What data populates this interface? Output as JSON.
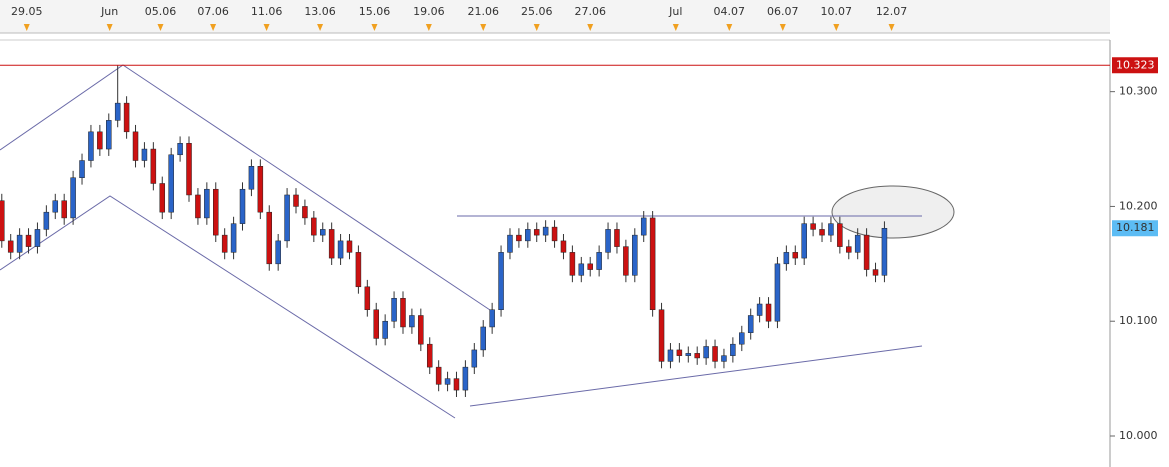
{
  "chart_data": {
    "type": "candlestick",
    "series": [
      {
        "up_color": "#2a64c8",
        "down_color": "#cc1111",
        "open": [
          10.205,
          10.17,
          10.16,
          10.175,
          10.165,
          10.18,
          10.195,
          10.205,
          10.19,
          10.225,
          10.24,
          10.265,
          10.25,
          10.275,
          10.29,
          10.265,
          10.24,
          10.25,
          10.22,
          10.195,
          10.245,
          10.255,
          10.21,
          10.19,
          10.215,
          10.175,
          10.16,
          10.185,
          10.215,
          10.235,
          10.195,
          10.15,
          10.17,
          10.21,
          10.2,
          10.19,
          10.175,
          10.18,
          10.155,
          10.17,
          10.16,
          10.13,
          10.11,
          10.085,
          10.1,
          10.12,
          10.095,
          10.105,
          10.08,
          10.06,
          10.045,
          10.05,
          10.04,
          10.06,
          10.075,
          10.095,
          10.11,
          10.16,
          10.175,
          10.17,
          10.18,
          10.175,
          10.182,
          10.17,
          10.16,
          10.14,
          10.15,
          10.145,
          10.16,
          10.18,
          10.165,
          10.14,
          10.175,
          10.19,
          10.11,
          10.065,
          10.075,
          10.07,
          10.072,
          10.068,
          10.078,
          10.065,
          10.07,
          10.08,
          10.09,
          10.105,
          10.115,
          10.1,
          10.15,
          10.16,
          10.155,
          10.185,
          10.18,
          10.175,
          10.185,
          10.165,
          10.16,
          10.175,
          10.145,
          10.14
        ],
        "high": [
          10.211,
          10.176,
          10.181,
          10.181,
          10.186,
          10.201,
          10.211,
          10.211,
          10.231,
          10.246,
          10.271,
          10.271,
          10.281,
          10.323,
          10.296,
          10.271,
          10.256,
          10.256,
          10.226,
          10.251,
          10.261,
          10.261,
          10.216,
          10.221,
          10.221,
          10.181,
          10.191,
          10.221,
          10.241,
          10.241,
          10.201,
          10.176,
          10.216,
          10.216,
          10.206,
          10.196,
          10.186,
          10.186,
          10.176,
          10.176,
          10.166,
          10.136,
          10.116,
          10.106,
          10.126,
          10.126,
          10.111,
          10.111,
          10.086,
          10.066,
          10.056,
          10.056,
          10.066,
          10.081,
          10.101,
          10.116,
          10.166,
          10.181,
          10.181,
          10.186,
          10.186,
          10.188,
          10.188,
          10.176,
          10.166,
          10.156,
          10.156,
          10.166,
          10.186,
          10.186,
          10.171,
          10.181,
          10.196,
          10.196,
          10.116,
          10.081,
          10.081,
          10.078,
          10.078,
          10.084,
          10.084,
          10.076,
          10.086,
          10.096,
          10.111,
          10.121,
          10.121,
          10.156,
          10.166,
          10.166,
          10.191,
          10.191,
          10.186,
          10.191,
          10.191,
          10.171,
          10.181,
          10.181,
          10.151,
          10.187
        ],
        "low": [
          10.164,
          10.154,
          10.154,
          10.159,
          10.159,
          10.174,
          10.189,
          10.184,
          10.184,
          10.219,
          10.234,
          10.244,
          10.244,
          10.269,
          10.259,
          10.234,
          10.234,
          10.214,
          10.189,
          10.189,
          10.239,
          10.204,
          10.184,
          10.184,
          10.169,
          10.154,
          10.154,
          10.179,
          10.209,
          10.189,
          10.144,
          10.144,
          10.164,
          10.194,
          10.184,
          10.169,
          10.169,
          10.149,
          10.149,
          10.154,
          10.124,
          10.104,
          10.079,
          10.079,
          10.094,
          10.089,
          10.089,
          10.074,
          10.054,
          10.039,
          10.039,
          10.034,
          10.034,
          10.054,
          10.069,
          10.089,
          10.104,
          10.154,
          10.164,
          10.164,
          10.169,
          10.169,
          10.164,
          10.154,
          10.134,
          10.134,
          10.139,
          10.139,
          10.154,
          10.159,
          10.134,
          10.134,
          10.169,
          10.104,
          10.059,
          10.059,
          10.064,
          10.064,
          10.062,
          10.062,
          10.059,
          10.059,
          10.064,
          10.074,
          10.084,
          10.099,
          10.094,
          10.094,
          10.144,
          10.149,
          10.149,
          10.174,
          10.169,
          10.169,
          10.159,
          10.154,
          10.154,
          10.139,
          10.134,
          10.134
        ],
        "close": [
          10.17,
          10.16,
          10.175,
          10.165,
          10.18,
          10.195,
          10.205,
          10.19,
          10.225,
          10.24,
          10.265,
          10.25,
          10.275,
          10.29,
          10.265,
          10.24,
          10.25,
          10.22,
          10.195,
          10.245,
          10.255,
          10.21,
          10.19,
          10.215,
          10.175,
          10.16,
          10.185,
          10.215,
          10.235,
          10.195,
          10.15,
          10.17,
          10.21,
          10.2,
          10.19,
          10.175,
          10.18,
          10.155,
          10.17,
          10.16,
          10.13,
          10.11,
          10.085,
          10.1,
          10.12,
          10.095,
          10.105,
          10.08,
          10.06,
          10.045,
          10.05,
          10.04,
          10.06,
          10.075,
          10.095,
          10.11,
          10.16,
          10.175,
          10.17,
          10.18,
          10.175,
          10.182,
          10.17,
          10.16,
          10.14,
          10.15,
          10.145,
          10.16,
          10.18,
          10.165,
          10.14,
          10.175,
          10.19,
          10.11,
          10.065,
          10.075,
          10.07,
          10.072,
          10.068,
          10.078,
          10.065,
          10.07,
          10.08,
          10.09,
          10.105,
          10.115,
          10.1,
          10.15,
          10.16,
          10.155,
          10.185,
          10.18,
          10.175,
          10.185,
          10.165,
          10.16,
          10.175,
          10.145,
          10.14,
          10.181
        ]
      }
    ],
    "xlim": [
      -0.2,
      124.3
    ],
    "xticks": [
      {
        "value": 2.8,
        "label": "29.05"
      },
      {
        "value": 12.1,
        "label": "Jun"
      },
      {
        "value": 17.8,
        "label": "05.06"
      },
      {
        "value": 23.7,
        "label": "07.06"
      },
      {
        "value": 29.7,
        "label": "11.06"
      },
      {
        "value": 35.7,
        "label": "13.06"
      },
      {
        "value": 41.8,
        "label": "15.06"
      },
      {
        "value": 47.9,
        "label": "19.06"
      },
      {
        "value": 54,
        "label": "21.06"
      },
      {
        "value": 60,
        "label": "25.06"
      },
      {
        "value": 66,
        "label": "27.06"
      },
      {
        "value": 75.6,
        "label": "Jul"
      },
      {
        "value": 81.6,
        "label": "04.07"
      },
      {
        "value": 87.6,
        "label": "06.07"
      },
      {
        "value": 93.6,
        "label": "10.07"
      },
      {
        "value": 99.8,
        "label": "12.07"
      }
    ],
    "ylim": [
      9.973,
      10.345
    ],
    "yticks": [
      {
        "value": 10,
        "label": "10.000"
      },
      {
        "value": 10.1,
        "label": "10.100"
      },
      {
        "value": 10.2,
        "label": "10.200"
      },
      {
        "value": 10.3,
        "label": "10.300"
      }
    ],
    "high_line": {
      "value": 10.323,
      "color": "#cc1111"
    },
    "current_price": {
      "value": 10.181,
      "color": "#5cbcf4"
    }
  }
}
